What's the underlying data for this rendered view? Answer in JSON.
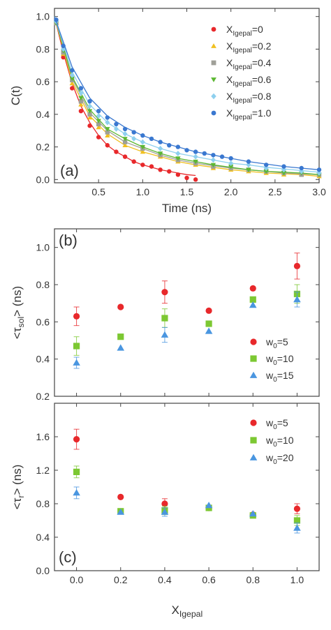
{
  "chart_data": [
    {
      "panel_label": "(a)",
      "type": "scatter",
      "xlabel": "Time (ns)",
      "ylabel": "C(t)",
      "xlim": [
        0,
        3.0
      ],
      "ylim": [
        -0.02,
        1.05
      ],
      "xticks": [
        "0.5",
        "1.0",
        "1.5",
        "2.0",
        "2.5",
        "3.0"
      ],
      "xtick_values": [
        0.5,
        1.0,
        1.5,
        2.0,
        2.5,
        3.0
      ],
      "yticks": [
        "0.0",
        "0.2",
        "0.4",
        "0.6",
        "0.8",
        "1.0"
      ],
      "ytick_values": [
        0.0,
        0.2,
        0.4,
        0.6,
        0.8,
        1.0
      ],
      "grid": false,
      "legend_position": "top-right",
      "series": [
        {
          "legend_base": "X",
          "legend_sub": "Igepal",
          "legend_tail": "=0",
          "color": "#e8282b",
          "marker": "circle",
          "x": [
            0.02,
            0.1,
            0.2,
            0.3,
            0.4,
            0.5,
            0.6,
            0.7,
            0.8,
            0.9,
            1.0,
            1.1,
            1.2,
            1.3,
            1.4,
            1.5,
            1.6
          ],
          "y": [
            0.96,
            0.75,
            0.56,
            0.42,
            0.33,
            0.26,
            0.21,
            0.17,
            0.14,
            0.11,
            0.09,
            0.08,
            0.06,
            0.05,
            0.03,
            0.01,
            0.0
          ],
          "fit_x": [
            0.0,
            0.1,
            0.2,
            0.3,
            0.4,
            0.5,
            0.6,
            0.7,
            0.8,
            0.9,
            1.0,
            1.1,
            1.2,
            1.3,
            1.4,
            1.5,
            1.6
          ],
          "fit_y": [
            1.0,
            0.78,
            0.59,
            0.45,
            0.35,
            0.27,
            0.21,
            0.17,
            0.14,
            0.11,
            0.09,
            0.075,
            0.06,
            0.05,
            0.04,
            0.03,
            0.025
          ]
        },
        {
          "legend_base": "X",
          "legend_sub": "Igepal",
          "legend_tail": "=0.2",
          "color": "#f0c020",
          "marker": "triangle",
          "x": [
            0.02,
            0.1,
            0.2,
            0.3,
            0.4,
            0.5,
            0.6,
            0.8,
            1.0,
            1.2,
            1.4,
            1.6,
            1.8,
            2.0,
            2.2,
            2.4,
            2.6,
            2.8,
            3.0
          ],
          "y": [
            0.96,
            0.77,
            0.59,
            0.46,
            0.38,
            0.32,
            0.27,
            0.21,
            0.17,
            0.14,
            0.11,
            0.09,
            0.07,
            0.06,
            0.05,
            0.04,
            0.03,
            0.03,
            0.02
          ],
          "fit_x": [
            0.0,
            0.2,
            0.4,
            0.6,
            0.8,
            1.0,
            1.2,
            1.4,
            1.6,
            1.8,
            2.0,
            2.2,
            2.4,
            2.6,
            2.8,
            3.0
          ],
          "fit_y": [
            1.0,
            0.6,
            0.39,
            0.28,
            0.21,
            0.17,
            0.14,
            0.11,
            0.09,
            0.075,
            0.06,
            0.05,
            0.04,
            0.035,
            0.03,
            0.02
          ]
        },
        {
          "legend_base": "X",
          "legend_sub": "Igepal",
          "legend_tail": "=0.4",
          "color": "#a0a098",
          "marker": "square",
          "x": [
            0.02,
            0.1,
            0.2,
            0.3,
            0.4,
            0.5,
            0.6,
            0.8,
            1.0,
            1.2,
            1.4,
            1.6,
            1.8,
            2.0,
            2.2,
            2.4,
            2.6,
            2.8,
            3.0
          ],
          "y": [
            0.96,
            0.78,
            0.61,
            0.48,
            0.4,
            0.34,
            0.29,
            0.23,
            0.19,
            0.15,
            0.12,
            0.1,
            0.08,
            0.07,
            0.06,
            0.05,
            0.04,
            0.03,
            0.03
          ],
          "fit_x": [
            0.0,
            0.2,
            0.4,
            0.6,
            0.8,
            1.0,
            1.2,
            1.4,
            1.6,
            1.8,
            2.0,
            2.2,
            2.4,
            2.6,
            2.8,
            3.0
          ],
          "fit_y": [
            1.0,
            0.62,
            0.41,
            0.3,
            0.23,
            0.19,
            0.15,
            0.12,
            0.1,
            0.085,
            0.07,
            0.06,
            0.05,
            0.04,
            0.035,
            0.03
          ]
        },
        {
          "legend_base": "X",
          "legend_sub": "Igepal",
          "legend_tail": "=0.6",
          "color": "#5cb832",
          "marker": "triangle-down",
          "x": [
            0.02,
            0.1,
            0.2,
            0.3,
            0.4,
            0.5,
            0.6,
            0.8,
            1.0,
            1.2,
            1.4,
            1.6,
            1.8,
            2.0,
            2.2,
            2.4,
            2.6,
            2.8,
            3.0
          ],
          "y": [
            0.96,
            0.79,
            0.62,
            0.5,
            0.42,
            0.36,
            0.31,
            0.25,
            0.2,
            0.16,
            0.13,
            0.11,
            0.09,
            0.08,
            0.06,
            0.05,
            0.04,
            0.04,
            0.03
          ],
          "fit_x": [
            0.0,
            0.2,
            0.4,
            0.6,
            0.8,
            1.0,
            1.2,
            1.4,
            1.6,
            1.8,
            2.0,
            2.2,
            2.4,
            2.6,
            2.8,
            3.0
          ],
          "fit_y": [
            1.0,
            0.63,
            0.43,
            0.31,
            0.25,
            0.2,
            0.16,
            0.13,
            0.11,
            0.09,
            0.075,
            0.06,
            0.05,
            0.045,
            0.04,
            0.03
          ]
        },
        {
          "legend_base": "X",
          "legend_sub": "Igepal",
          "legend_tail": "=0.8",
          "color": "#8ed0ee",
          "marker": "diamond",
          "x": [
            0.02,
            0.1,
            0.2,
            0.3,
            0.4,
            0.5,
            0.6,
            0.7,
            0.8,
            0.9,
            1.0,
            1.2,
            1.4,
            1.6,
            1.8,
            2.0,
            2.2,
            2.4,
            2.6,
            2.8,
            3.0
          ],
          "y": [
            0.97,
            0.8,
            0.64,
            0.53,
            0.45,
            0.39,
            0.35,
            0.31,
            0.28,
            0.25,
            0.23,
            0.19,
            0.16,
            0.14,
            0.12,
            0.1,
            0.09,
            0.07,
            0.06,
            0.05,
            0.04
          ],
          "fit_x": [
            0.0,
            0.2,
            0.4,
            0.6,
            0.8,
            1.0,
            1.2,
            1.4,
            1.6,
            1.8,
            2.0,
            2.2,
            2.4,
            2.6,
            2.8,
            3.0
          ],
          "fit_y": [
            1.0,
            0.66,
            0.46,
            0.35,
            0.28,
            0.23,
            0.19,
            0.16,
            0.14,
            0.12,
            0.1,
            0.09,
            0.075,
            0.065,
            0.055,
            0.045
          ]
        },
        {
          "legend_base": "X",
          "legend_sub": "Igepal",
          "legend_tail": "=1.0",
          "color": "#3a78d0",
          "marker": "circle",
          "x": [
            0.02,
            0.1,
            0.2,
            0.3,
            0.4,
            0.5,
            0.6,
            0.7,
            0.8,
            0.9,
            1.0,
            1.1,
            1.2,
            1.3,
            1.4,
            1.5,
            1.6,
            1.7,
            1.8,
            1.9,
            2.0,
            2.2,
            2.4,
            2.6,
            2.8,
            3.0
          ],
          "y": [
            0.98,
            0.82,
            0.67,
            0.56,
            0.48,
            0.42,
            0.38,
            0.34,
            0.31,
            0.29,
            0.27,
            0.25,
            0.23,
            0.21,
            0.2,
            0.18,
            0.17,
            0.16,
            0.15,
            0.14,
            0.13,
            0.11,
            0.09,
            0.08,
            0.07,
            0.06
          ],
          "fit_x": [
            0.0,
            0.2,
            0.4,
            0.6,
            0.8,
            1.0,
            1.2,
            1.4,
            1.6,
            1.8,
            2.0,
            2.2,
            2.4,
            2.6,
            2.8,
            3.0
          ],
          "fit_y": [
            1.0,
            0.69,
            0.5,
            0.39,
            0.32,
            0.27,
            0.23,
            0.2,
            0.17,
            0.15,
            0.13,
            0.11,
            0.095,
            0.08,
            0.07,
            0.06
          ]
        }
      ]
    },
    {
      "panel_label": "(b)",
      "type": "scatter",
      "xlabel": "",
      "ylabel_parts": {
        "pre": "<τ",
        "sub": "sol",
        "post": "> (ns)"
      },
      "xlim": [
        -0.1,
        1.1
      ],
      "ylim": [
        0.2,
        1.1
      ],
      "yticks": [
        "0.2",
        "0.4",
        "0.6",
        "0.8",
        "1.0"
      ],
      "ytick_values": [
        0.2,
        0.4,
        0.6,
        0.8,
        1.0
      ],
      "x": [
        0.0,
        0.2,
        0.4,
        0.6,
        0.8,
        1.0
      ],
      "grid": false,
      "legend_position": "bottom-right",
      "series": [
        {
          "legend_base": "w",
          "legend_sub": "0",
          "legend_tail": "=5",
          "color": "#e8282b",
          "marker": "circle",
          "values": [
            0.63,
            0.68,
            0.76,
            0.66,
            0.78,
            0.9
          ],
          "errors": [
            0.05,
            0.0,
            0.06,
            0.0,
            0.0,
            0.07
          ]
        },
        {
          "legend_base": "w",
          "legend_sub": "0",
          "legend_tail": "=10",
          "color": "#7cc832",
          "marker": "square",
          "values": [
            0.47,
            0.52,
            0.62,
            0.59,
            0.72,
            0.75
          ],
          "errors": [
            0.05,
            0.0,
            0.05,
            0.0,
            0.0,
            0.05
          ]
        },
        {
          "legend_base": "w",
          "legend_sub": "0",
          "legend_tail": "=15",
          "color": "#4a96e0",
          "marker": "triangle",
          "values": [
            0.38,
            0.46,
            0.53,
            0.55,
            0.69,
            0.72
          ],
          "errors": [
            0.03,
            0.0,
            0.04,
            0.0,
            0.0,
            0.04
          ]
        }
      ]
    },
    {
      "panel_label": "(c)",
      "type": "scatter",
      "xlabel_parts": {
        "pre": "X",
        "sub": "Igepal"
      },
      "ylabel_parts": {
        "pre": "<τ",
        "sub": "r",
        "post": "> (ns)"
      },
      "xlim": [
        -0.1,
        1.1
      ],
      "ylim": [
        0.0,
        2.0
      ],
      "xticks": [
        "0.0",
        "0.2",
        "0.4",
        "0.6",
        "0.8",
        "1.0"
      ],
      "xtick_values": [
        0.0,
        0.2,
        0.4,
        0.6,
        0.8,
        1.0
      ],
      "yticks": [
        "0.0",
        "0.4",
        "0.8",
        "1.2",
        "1.6"
      ],
      "ytick_values": [
        0.0,
        0.4,
        0.8,
        1.2,
        1.6
      ],
      "x": [
        0.0,
        0.2,
        0.4,
        0.6,
        0.8,
        1.0
      ],
      "grid": false,
      "legend_position": "top-right",
      "series": [
        {
          "legend_base": "w",
          "legend_sub": "0",
          "legend_tail": "=5",
          "color": "#e8282b",
          "marker": "circle",
          "values": [
            1.57,
            0.88,
            0.8,
            0.75,
            0.67,
            0.74
          ],
          "errors": [
            0.12,
            0.0,
            0.06,
            0.0,
            0.0,
            0.06
          ]
        },
        {
          "legend_base": "w",
          "legend_sub": "0",
          "legend_tail": "=10",
          "color": "#7cc832",
          "marker": "square",
          "values": [
            1.18,
            0.71,
            0.72,
            0.75,
            0.66,
            0.6
          ],
          "errors": [
            0.07,
            0.0,
            0.05,
            0.0,
            0.0,
            0.06
          ]
        },
        {
          "legend_base": "w",
          "legend_sub": "0",
          "legend_tail": "=20",
          "color": "#4a96e0",
          "marker": "triangle",
          "values": [
            0.93,
            0.7,
            0.7,
            0.78,
            0.68,
            0.51
          ],
          "errors": [
            0.07,
            0.0,
            0.05,
            0.0,
            0.0,
            0.06
          ]
        }
      ]
    }
  ]
}
